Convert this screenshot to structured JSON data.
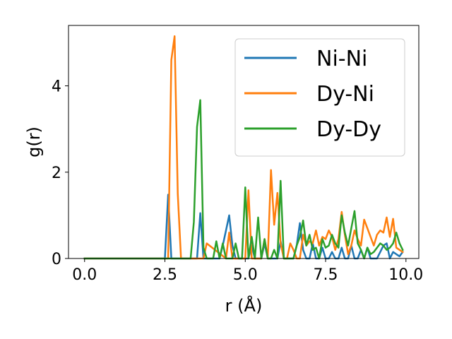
{
  "chart_data": {
    "type": "line",
    "title": "",
    "xlabel": "r (Å)",
    "ylabel": "g(r)",
    "xlim": [
      -0.5,
      10.4
    ],
    "ylim": [
      0,
      5.4
    ],
    "xticks": [
      0.0,
      2.5,
      5.0,
      7.5,
      10.0
    ],
    "xtick_labels": [
      "0.0",
      "2.5",
      "5.0",
      "7.5",
      "10.0"
    ],
    "yticks": [
      0,
      2,
      4
    ],
    "ytick_labels": [
      "0",
      "2",
      "4"
    ],
    "grid": false,
    "legend_position": "top-right",
    "series": [
      {
        "name": "Ni-Ni",
        "color": "#1f77b4",
        "x": [
          0.0,
          2.5,
          2.6,
          2.7,
          2.8,
          3.5,
          3.6,
          3.7,
          4.0,
          4.2,
          4.3,
          4.4,
          4.5,
          4.6,
          4.7,
          5.0,
          5.1,
          5.2,
          5.3,
          5.4,
          5.5,
          5.6,
          5.7,
          5.8,
          5.9,
          6.0,
          6.1,
          6.2,
          6.3,
          6.4,
          6.5,
          6.6,
          6.7,
          6.8,
          6.9,
          7.0,
          7.1,
          7.2,
          7.3,
          7.4,
          7.5,
          7.6,
          7.7,
          7.8,
          7.9,
          8.0,
          8.1,
          8.2,
          8.3,
          8.4,
          8.5,
          8.6,
          8.7,
          8.8,
          8.9,
          9.0,
          9.1,
          9.2,
          9.3,
          9.4,
          9.5,
          9.6,
          9.7,
          9.8,
          9.9
        ],
        "y": [
          0.0,
          0.0,
          1.48,
          0.0,
          0.0,
          0.0,
          1.05,
          0.0,
          0.0,
          0.0,
          0.3,
          0.65,
          1.0,
          0.3,
          0.0,
          0.0,
          0.0,
          0.3,
          0.0,
          0.0,
          0.0,
          0.35,
          0.0,
          0.0,
          0.0,
          0.0,
          0.4,
          0.0,
          0.0,
          0.0,
          0.0,
          0.3,
          0.82,
          0.2,
          0.0,
          0.0,
          0.35,
          0.0,
          0.0,
          0.25,
          0.0,
          0.0,
          0.15,
          0.0,
          0.0,
          0.25,
          0.0,
          0.0,
          0.3,
          0.0,
          0.0,
          0.2,
          0.0,
          0.25,
          0.0,
          0.0,
          0.0,
          0.15,
          0.3,
          0.35,
          0.0,
          0.15,
          0.1,
          0.05,
          0.15
        ]
      },
      {
        "name": "Dy-Ni",
        "color": "#ff7f0e",
        "x": [
          0.0,
          2.6,
          2.7,
          2.8,
          2.9,
          3.0,
          3.7,
          3.8,
          4.4,
          4.5,
          4.6,
          5.0,
          5.1,
          5.2,
          5.5,
          5.6,
          5.7,
          5.8,
          5.9,
          6.0,
          6.1,
          6.2,
          6.3,
          6.4,
          6.5,
          6.6,
          6.7,
          6.8,
          6.9,
          7.0,
          7.1,
          7.2,
          7.3,
          7.4,
          7.5,
          7.6,
          7.7,
          7.8,
          7.9,
          8.0,
          8.1,
          8.2,
          8.3,
          8.4,
          8.5,
          8.6,
          8.7,
          8.8,
          8.9,
          9.0,
          9.1,
          9.2,
          9.3,
          9.4,
          9.5,
          9.6,
          9.7,
          9.8,
          9.9
        ],
        "y": [
          0.0,
          0.0,
          4.6,
          5.15,
          1.5,
          0.0,
          0.0,
          0.35,
          0.0,
          0.6,
          0.0,
          0.0,
          1.58,
          0.0,
          0.0,
          0.45,
          0.0,
          2.05,
          0.78,
          1.52,
          0.35,
          0.0,
          0.0,
          0.35,
          0.2,
          0.0,
          0.0,
          0.55,
          0.3,
          0.4,
          0.35,
          0.65,
          0.3,
          0.5,
          0.45,
          0.65,
          0.5,
          0.2,
          0.45,
          1.08,
          0.55,
          0.1,
          0.3,
          0.65,
          0.45,
          0.3,
          0.9,
          0.7,
          0.5,
          0.3,
          0.55,
          0.65,
          0.6,
          0.95,
          0.5,
          0.92,
          0.25,
          0.2,
          0.15
        ]
      },
      {
        "name": "Dy-Dy",
        "color": "#2ca02c",
        "x": [
          0.0,
          3.3,
          3.4,
          3.5,
          3.6,
          3.7,
          3.8,
          4.0,
          4.1,
          4.2,
          4.3,
          4.4,
          4.5,
          4.6,
          4.7,
          4.8,
          4.9,
          5.0,
          5.1,
          5.2,
          5.3,
          5.4,
          5.5,
          5.6,
          5.7,
          5.8,
          5.9,
          6.0,
          6.1,
          6.2,
          6.3,
          6.4,
          6.5,
          6.6,
          6.7,
          6.8,
          6.9,
          7.0,
          7.1,
          7.2,
          7.3,
          7.4,
          7.5,
          7.6,
          7.7,
          7.8,
          7.9,
          8.0,
          8.1,
          8.2,
          8.3,
          8.4,
          8.5,
          8.6,
          8.7,
          8.8,
          8.9,
          9.0,
          9.1,
          9.2,
          9.3,
          9.4,
          9.5,
          9.6,
          9.7,
          9.8,
          9.9
        ],
        "y": [
          0.0,
          0.0,
          0.85,
          3.05,
          3.67,
          0.25,
          0.0,
          0.0,
          0.4,
          0.0,
          0.35,
          0.0,
          0.0,
          0.0,
          0.35,
          0.0,
          0.0,
          1.65,
          0.0,
          0.5,
          0.0,
          0.95,
          0.0,
          0.45,
          0.0,
          0.0,
          0.2,
          0.0,
          1.8,
          0.0,
          0.0,
          0.0,
          0.0,
          0.3,
          0.5,
          0.88,
          0.3,
          0.55,
          0.2,
          0.25,
          0.0,
          0.45,
          0.25,
          0.3,
          0.55,
          0.35,
          0.25,
          1.0,
          0.6,
          0.3,
          0.7,
          1.1,
          0.35,
          0.2,
          0.0,
          0.25,
          0.1,
          0.15,
          0.25,
          0.35,
          0.3,
          0.2,
          0.25,
          0.35,
          0.6,
          0.35,
          0.2
        ]
      }
    ]
  }
}
